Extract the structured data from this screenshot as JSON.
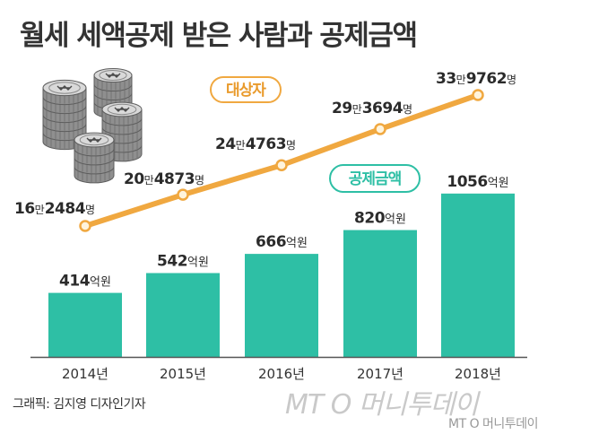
{
  "title": "월세 세액공제 받은 사람과 공제금액",
  "credit": "그래픽: 김지영 디자인기자",
  "watermark_large": "MT O 머니투데이",
  "watermark_small": "MT O 머니투데이",
  "colors": {
    "bar": "#2ebfa5",
    "line": "#f0a840",
    "marker_fill": "#fff4dc",
    "pill_line_border": "#f0a840",
    "pill_line_text": "#e99a2b",
    "pill_bar_border": "#2ebfa5",
    "pill_bar_text": "#2ebfa5"
  },
  "chart_data": {
    "type": "bar",
    "title": "월세 세액공제 받은 사람과 공제금액",
    "categories": [
      "2014년",
      "2015년",
      "2016년",
      "2017년",
      "2018년"
    ],
    "series": [
      {
        "name": "공제금액",
        "type": "bar",
        "values": [
          414,
          542,
          666,
          820,
          1056
        ],
        "labels": [
          {
            "num": "414",
            "unit": "억원"
          },
          {
            "num": "542",
            "unit": "억원"
          },
          {
            "num": "666",
            "unit": "억원"
          },
          {
            "num": "820",
            "unit": "억원"
          },
          {
            "num": "1056",
            "unit": "억원"
          }
        ]
      },
      {
        "name": "대상자",
        "type": "line",
        "values": [
          162484,
          204873,
          244763,
          293694,
          339762
        ],
        "labels": [
          {
            "a": "16",
            "b": "만",
            "c": "2484",
            "d": "명"
          },
          {
            "a": "20",
            "b": "만",
            "c": "4873",
            "d": "명"
          },
          {
            "a": "24",
            "b": "만",
            "c": "4763",
            "d": "명"
          },
          {
            "a": "29",
            "b": "만",
            "c": "3694",
            "d": "명"
          },
          {
            "a": "33",
            "b": "만",
            "c": "9762",
            "d": "명"
          }
        ]
      }
    ],
    "grid": false,
    "legend": "inline pill labels"
  }
}
